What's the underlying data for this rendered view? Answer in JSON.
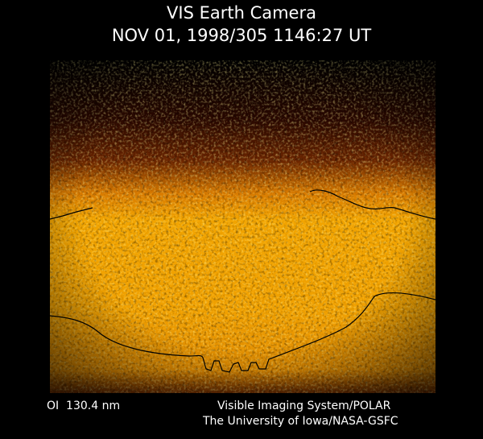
{
  "header": {
    "title": "VIS Earth Camera",
    "timestamp": "NOV 01, 1998/305 1146:27 UT"
  },
  "footer": {
    "wavelength": "OI  130.4 nm",
    "instrument": "Visible Imaging System/POLAR",
    "credit": "The University of Iowa/NASA-GSFC"
  }
}
